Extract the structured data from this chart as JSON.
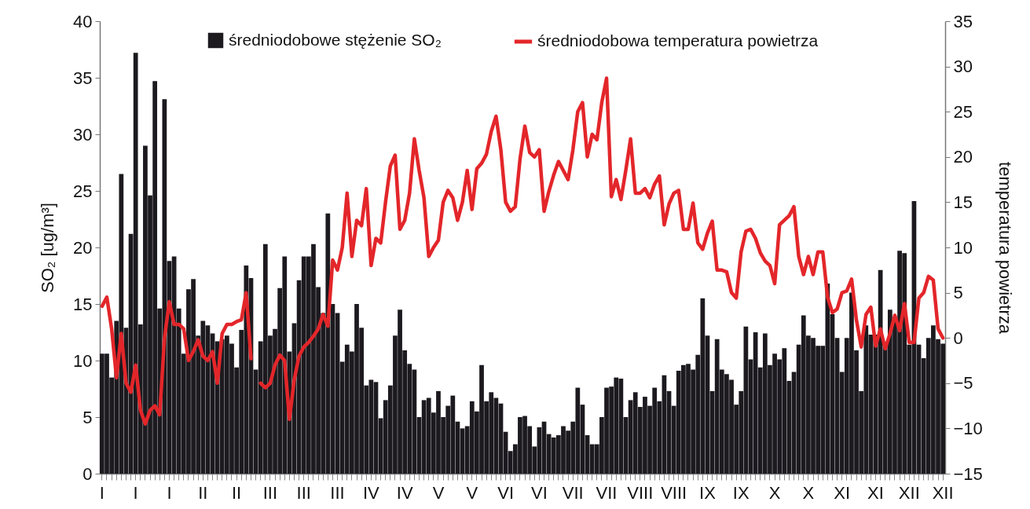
{
  "chart_data": {
    "type": "bar",
    "categories": [
      "I",
      null,
      null,
      null,
      null,
      null,
      null,
      "I",
      null,
      null,
      null,
      null,
      null,
      null,
      "I",
      null,
      null,
      null,
      null,
      null,
      null,
      "II",
      null,
      null,
      null,
      null,
      null,
      null,
      "II",
      null,
      null,
      null,
      null,
      null,
      null,
      "III",
      null,
      null,
      null,
      null,
      null,
      null,
      "III",
      null,
      null,
      null,
      null,
      null,
      null,
      "III",
      null,
      null,
      null,
      null,
      null,
      null,
      "IV",
      null,
      null,
      null,
      null,
      null,
      null,
      "IV",
      null,
      null,
      null,
      null,
      null,
      null,
      "V",
      null,
      null,
      null,
      null,
      null,
      null,
      "V",
      null,
      null,
      null,
      null,
      null,
      null,
      "VI",
      null,
      null,
      null,
      null,
      null,
      null,
      "VI",
      null,
      null,
      null,
      null,
      null,
      null,
      "VII",
      null,
      null,
      null,
      null,
      null,
      null,
      "VII",
      null,
      null,
      null,
      null,
      null,
      null,
      "VIII",
      null,
      null,
      null,
      null,
      null,
      null,
      "VIII",
      null,
      null,
      null,
      null,
      null,
      null,
      "IX",
      null,
      null,
      null,
      null,
      null,
      null,
      "IX",
      null,
      null,
      null,
      null,
      null,
      null,
      "X",
      null,
      null,
      null,
      null,
      null,
      null,
      "X",
      null,
      null,
      null,
      null,
      null,
      null,
      "XI",
      null,
      null,
      null,
      null,
      null,
      null,
      "XI",
      null,
      null,
      null,
      null,
      null,
      null,
      "XII",
      null,
      null,
      null,
      null,
      null,
      null,
      "XII"
    ],
    "series": [
      {
        "name": "średniodobowe stężenie SO₂",
        "color": "#1c1a1f",
        "values": [
          10.6,
          10.6,
          8.5,
          13.5,
          26.5,
          12.9,
          21.2,
          37.2,
          13.2,
          29,
          24.6,
          34.7,
          14.6,
          33.1,
          18.8,
          19.2,
          14.6,
          10.6,
          16.3,
          17.2,
          12.2,
          13.5,
          13.1,
          12.4,
          11.7,
          11.9,
          12.2,
          11.5,
          9.4,
          12.7,
          18.4,
          17.3,
          9.2,
          11.7,
          20.3,
          12.2,
          12.8,
          16.4,
          19.2,
          10.8,
          13.3,
          17.1,
          19.2,
          19.2,
          20.3,
          16.5,
          14.2,
          23,
          15,
          14.2,
          9.9,
          11.4,
          10.8,
          15,
          12.9,
          7.8,
          8.3,
          8.1,
          4.9,
          6.5,
          7.8,
          12.2,
          14.5,
          10.9,
          9.7,
          9.2,
          5,
          6.5,
          6.7,
          5.4,
          7.3,
          5,
          6,
          6.9,
          4.6,
          4,
          4.2,
          6.4,
          5.5,
          9.6,
          6.4,
          7.2,
          6.7,
          6.2,
          3.7,
          2,
          2.6,
          5,
          5.1,
          4.2,
          2.4,
          4.1,
          4.6,
          3.5,
          3.2,
          3.4,
          4.2,
          3.8,
          4.6,
          7.6,
          6.1,
          3.4,
          2.6,
          2.6,
          5,
          7.6,
          7.7,
          8.5,
          8.4,
          5,
          6.5,
          7.2,
          5.9,
          6.8,
          6,
          7.6,
          6.4,
          8.7,
          7.3,
          6,
          9.1,
          9.6,
          9.7,
          9.2,
          10.5,
          15.5,
          12.2,
          7.3,
          11.9,
          9.2,
          8.8,
          8.3,
          6.1,
          7.3,
          13,
          10.1,
          12.5,
          9.4,
          12.4,
          9.6,
          10.6,
          10.1,
          11.1,
          8.2,
          9,
          11.4,
          14,
          12.2,
          12,
          11.3,
          11.3,
          16.8,
          14.1,
          12,
          9,
          12,
          16,
          10.9,
          7.3,
          13.1,
          12.3,
          12.3,
          18,
          11.4,
          14.5,
          13.5,
          19.7,
          19.5,
          11.4,
          24.1,
          11.4,
          10.2,
          12,
          13.1,
          11.9,
          11.5
        ]
      },
      {
        "name": "średniodobowa temperatura powietrza",
        "type": "line",
        "axis": "y2",
        "color": "#e3262a",
        "values": [
          3.5,
          4.5,
          1,
          -4.4,
          0.5,
          -5,
          -6,
          -3,
          -8,
          -9.5,
          -8,
          -7.5,
          -8.5,
          0,
          4,
          1.5,
          1.5,
          1,
          -2.5,
          -1.5,
          -0.2,
          -2,
          -2.5,
          -1.5,
          -5,
          0.5,
          1.5,
          1.5,
          1.8,
          2,
          5,
          -2.3,
          null,
          -5,
          -5.5,
          -5,
          -3,
          -1.9,
          -2.5,
          -9,
          -4.6,
          -2,
          -1,
          -0.5,
          0.2,
          1,
          2.6,
          1.3,
          8.6,
          7.5,
          10,
          16,
          9,
          13,
          12.4,
          16.5,
          8,
          11,
          10.5,
          15,
          19,
          20.2,
          12,
          13,
          16,
          22,
          18.5,
          15.5,
          9,
          10,
          10.8,
          15,
          16.3,
          15.5,
          13,
          15,
          18.5,
          14.2,
          18.7,
          19.3,
          20.3,
          22.8,
          24.5,
          20.8,
          15,
          14,
          14.5,
          19.8,
          23.4,
          20.5,
          20,
          20.8,
          14,
          16.2,
          18,
          19.5,
          18.5,
          17.5,
          20.8,
          25,
          26,
          20,
          22.5,
          21.9,
          26,
          28.7,
          15.6,
          17.5,
          15.3,
          18.5,
          22,
          16,
          16,
          16.5,
          15.5,
          17,
          17.9,
          12.5,
          14.8,
          16,
          16.3,
          12,
          12,
          14.9,
          10.5,
          9.8,
          11.6,
          12.9,
          7.5,
          7.5,
          7.3,
          5,
          4.4,
          9.5,
          11.8,
          12,
          11,
          9.4,
          8.5,
          8,
          6,
          12.5,
          13,
          13.5,
          14.5,
          9,
          7,
          9,
          7,
          9.5,
          9.5,
          4.5,
          2.8,
          3.2,
          5,
          5.2,
          6.5,
          2,
          -1,
          2.6,
          3.4,
          -0.9,
          1,
          -1.2,
          0.5,
          2.5,
          0.8,
          3.8,
          -0.5,
          -0.5,
          4.4,
          5,
          6.8,
          6.4,
          1,
          0
        ]
      }
    ],
    "ylabel": "SO₂ [ug/m³]",
    "y2label": "temperatura powietrza",
    "ylim": [
      0,
      40
    ],
    "yticks": [
      0,
      5,
      10,
      15,
      20,
      25,
      30,
      35,
      40
    ],
    "y2lim": [
      -15,
      35
    ],
    "y2ticks": [
      -15,
      -10,
      -5,
      0,
      5,
      10,
      15,
      20,
      25,
      30,
      35
    ],
    "legend": "top"
  }
}
